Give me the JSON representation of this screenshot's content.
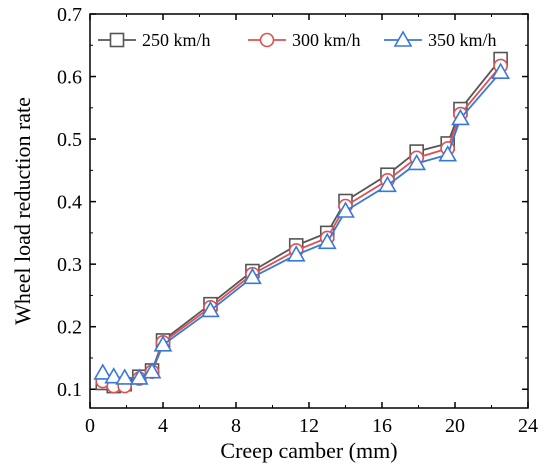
{
  "chart_data": {
    "type": "line",
    "xlabel": "Creep camber (mm)",
    "ylabel": "Wheel load reduction rate",
    "xlim": [
      0,
      24
    ],
    "ylim": [
      0.07,
      0.7
    ],
    "xticks": [
      "0",
      "4",
      "8",
      "12",
      "16",
      "20",
      "24"
    ],
    "yticks": [
      "0.1",
      "0.2",
      "0.3",
      "0.4",
      "0.5",
      "0.6",
      "0.7"
    ],
    "legend_position": "top-left",
    "grid": false,
    "x": [
      0.7,
      1.3,
      1.9,
      2.7,
      3.4,
      4.0,
      6.6,
      8.9,
      11.3,
      13.0,
      14.0,
      16.3,
      17.9,
      19.6,
      20.3,
      22.5
    ],
    "series": [
      {
        "name": "250 km/h",
        "color": "#555555",
        "marker": "square",
        "values": [
          0.11,
          0.105,
          0.108,
          0.12,
          0.13,
          0.178,
          0.236,
          0.289,
          0.33,
          0.35,
          0.401,
          0.443,
          0.48,
          0.493,
          0.548,
          0.628
        ]
      },
      {
        "name": "300 km/h",
        "color": "#e05050",
        "marker": "circle",
        "values": [
          0.113,
          0.105,
          0.105,
          0.117,
          0.128,
          0.175,
          0.231,
          0.284,
          0.322,
          0.342,
          0.393,
          0.434,
          0.47,
          0.485,
          0.54,
          0.617
        ]
      },
      {
        "name": "350 km/h",
        "color": "#3a78d8",
        "marker": "triangle",
        "values": [
          0.126,
          0.12,
          0.118,
          0.118,
          0.128,
          0.171,
          0.226,
          0.279,
          0.315,
          0.335,
          0.385,
          0.426,
          0.461,
          0.475,
          0.533,
          0.607
        ]
      }
    ]
  }
}
